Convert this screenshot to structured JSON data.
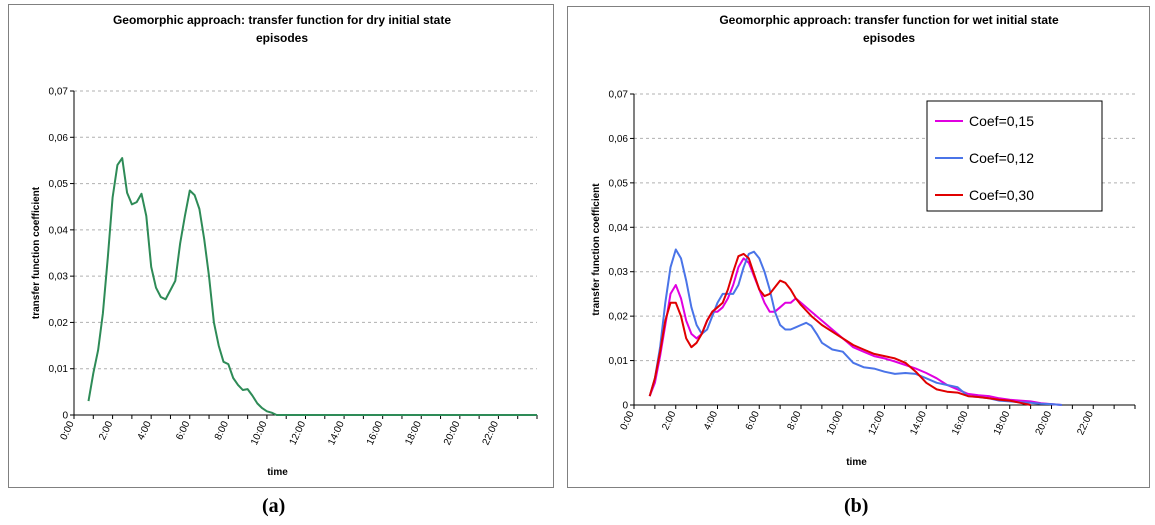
{
  "figure": {
    "caption_a": "(a)",
    "caption_b": "(b)"
  },
  "chart_data": [
    {
      "type": "line",
      "title": "Geomorphic approach: transfer function for dry initial state",
      "title_line2": "episodes",
      "xlabel": "time",
      "ylabel": "transfer function coefficient",
      "ylim": [
        0,
        0.07
      ],
      "yticks": [
        "0",
        "0,01",
        "0,02",
        "0,03",
        "0,04",
        "0,05",
        "0,06",
        "0,07"
      ],
      "xlim": [
        0,
        24
      ],
      "xticks": [
        "0:00",
        "2:00",
        "4:00",
        "6:00",
        "8:00",
        "10:00",
        "12:00",
        "14:00",
        "16:00",
        "18:00",
        "20:00",
        "22:00"
      ],
      "grid": true,
      "legend": "none",
      "series": [
        {
          "color": "#2e8b57",
          "x": [
            0.75,
            1.0,
            1.25,
            1.5,
            1.75,
            2.0,
            2.25,
            2.5,
            2.75,
            3.0,
            3.25,
            3.5,
            3.75,
            4.0,
            4.25,
            4.5,
            4.75,
            5.0,
            5.25,
            5.5,
            5.75,
            6.0,
            6.25,
            6.5,
            6.75,
            7.0,
            7.25,
            7.5,
            7.75,
            8.0,
            8.25,
            8.5,
            8.75,
            9.0,
            9.25,
            9.5,
            9.75,
            10.0,
            10.25,
            10.5,
            11.0,
            24.0
          ],
          "y": [
            0.003,
            0.009,
            0.014,
            0.022,
            0.034,
            0.047,
            0.054,
            0.0555,
            0.048,
            0.0455,
            0.046,
            0.0478,
            0.043,
            0.032,
            0.0275,
            0.0255,
            0.025,
            0.027,
            0.029,
            0.037,
            0.043,
            0.0485,
            0.0475,
            0.0445,
            0.038,
            0.03,
            0.02,
            0.015,
            0.0115,
            0.011,
            0.008,
            0.0065,
            0.0054,
            0.0056,
            0.0042,
            0.0025,
            0.0015,
            0.0008,
            0.0005,
            0.0,
            0.0,
            0.0
          ]
        }
      ]
    },
    {
      "type": "line",
      "title": "Geomorphic approach: transfer function for wet initial state",
      "title_line2": "episodes",
      "xlabel": "time",
      "ylabel": "transfer function coefficient",
      "ylim": [
        0,
        0.07
      ],
      "yticks": [
        "0",
        "0,01",
        "0,02",
        "0,03",
        "0,04",
        "0,05",
        "0,06",
        "0,07"
      ],
      "xlim": [
        0,
        24
      ],
      "xticks": [
        "0:00",
        "2:00",
        "4:00",
        "6:00",
        "8:00",
        "10:00",
        "12:00",
        "14:00",
        "16:00",
        "18:00",
        "20:00",
        "22:00"
      ],
      "grid": true,
      "legend": "top-right",
      "series": [
        {
          "name": "Coef=0,15",
          "color": "#e000e0",
          "x": [
            0.75,
            1.0,
            1.25,
            1.5,
            1.75,
            2.0,
            2.25,
            2.5,
            2.75,
            3.0,
            3.25,
            3.5,
            3.75,
            4.0,
            4.25,
            4.5,
            4.75,
            5.0,
            5.25,
            5.5,
            5.75,
            6.0,
            6.25,
            6.5,
            6.75,
            7.0,
            7.25,
            7.5,
            7.75,
            8.0,
            8.5,
            9.0,
            9.5,
            10.0,
            10.5,
            11.0,
            11.5,
            12.0,
            12.5,
            13.0,
            13.5,
            14.0,
            14.5,
            15.0,
            15.5,
            16.0,
            16.5,
            17.0,
            17.5,
            18.0,
            18.5,
            19.0,
            19.5,
            20.0,
            20.5
          ],
          "y": [
            0.002,
            0.005,
            0.011,
            0.018,
            0.025,
            0.027,
            0.024,
            0.019,
            0.016,
            0.015,
            0.016,
            0.019,
            0.021,
            0.021,
            0.022,
            0.024,
            0.027,
            0.031,
            0.033,
            0.032,
            0.029,
            0.026,
            0.023,
            0.021,
            0.021,
            0.022,
            0.023,
            0.023,
            0.024,
            0.023,
            0.021,
            0.019,
            0.017,
            0.015,
            0.013,
            0.012,
            0.011,
            0.0105,
            0.0098,
            0.009,
            0.0082,
            0.0072,
            0.006,
            0.0045,
            0.0035,
            0.0025,
            0.0022,
            0.002,
            0.0015,
            0.0012,
            0.001,
            0.0008,
            0.0004,
            0.0002,
            0.0
          ]
        },
        {
          "name": "Coef=0,12",
          "color": "#4a74e8",
          "x": [
            0.75,
            1.0,
            1.25,
            1.5,
            1.75,
            2.0,
            2.25,
            2.5,
            2.75,
            3.0,
            3.25,
            3.5,
            3.75,
            4.0,
            4.25,
            4.5,
            4.75,
            5.0,
            5.25,
            5.5,
            5.75,
            6.0,
            6.25,
            6.5,
            6.75,
            7.0,
            7.25,
            7.5,
            7.75,
            8.0,
            8.25,
            8.5,
            8.75,
            9.0,
            9.5,
            10.0,
            10.5,
            11.0,
            11.5,
            12.0,
            12.5,
            13.0,
            13.5,
            14.0,
            14.5,
            15.0,
            15.5,
            16.0,
            16.5,
            17.0,
            17.5,
            18.0,
            18.5,
            19.0,
            19.5,
            20.0,
            20.5
          ],
          "y": [
            0.002,
            0.006,
            0.013,
            0.023,
            0.031,
            0.035,
            0.033,
            0.028,
            0.022,
            0.018,
            0.016,
            0.017,
            0.02,
            0.023,
            0.025,
            0.025,
            0.025,
            0.027,
            0.031,
            0.034,
            0.0345,
            0.033,
            0.03,
            0.026,
            0.021,
            0.018,
            0.017,
            0.017,
            0.0175,
            0.018,
            0.0185,
            0.0178,
            0.016,
            0.014,
            0.0125,
            0.012,
            0.0095,
            0.0085,
            0.0082,
            0.0075,
            0.007,
            0.0072,
            0.007,
            0.006,
            0.005,
            0.0045,
            0.004,
            0.002,
            0.0018,
            0.0015,
            0.001,
            0.0008,
            0.0006,
            0.0005,
            0.0003,
            0.0002,
            0.0
          ]
        },
        {
          "name": "Coef=0,30",
          "color": "#e00000",
          "x": [
            0.75,
            1.0,
            1.25,
            1.5,
            1.75,
            2.0,
            2.25,
            2.5,
            2.75,
            3.0,
            3.25,
            3.5,
            3.75,
            4.0,
            4.25,
            4.5,
            4.75,
            5.0,
            5.25,
            5.5,
            5.75,
            6.0,
            6.25,
            6.5,
            6.75,
            7.0,
            7.25,
            7.5,
            7.75,
            8.0,
            8.5,
            9.0,
            9.5,
            10.0,
            10.5,
            11.0,
            11.5,
            12.0,
            12.5,
            13.0,
            13.5,
            14.0,
            14.5,
            15.0,
            15.5,
            16.0,
            16.5,
            17.0,
            17.5,
            18.0,
            18.5,
            19.0
          ],
          "y": [
            0.002,
            0.006,
            0.012,
            0.019,
            0.023,
            0.023,
            0.02,
            0.015,
            0.013,
            0.014,
            0.016,
            0.019,
            0.021,
            0.022,
            0.023,
            0.026,
            0.03,
            0.0335,
            0.034,
            0.033,
            0.0295,
            0.026,
            0.0245,
            0.025,
            0.0265,
            0.028,
            0.0275,
            0.026,
            0.024,
            0.0225,
            0.02,
            0.018,
            0.0165,
            0.015,
            0.0135,
            0.0125,
            0.0115,
            0.011,
            0.0105,
            0.0095,
            0.0075,
            0.005,
            0.0035,
            0.003,
            0.0028,
            0.002,
            0.0018,
            0.0015,
            0.0012,
            0.001,
            0.0005,
            0.0
          ]
        }
      ]
    }
  ]
}
